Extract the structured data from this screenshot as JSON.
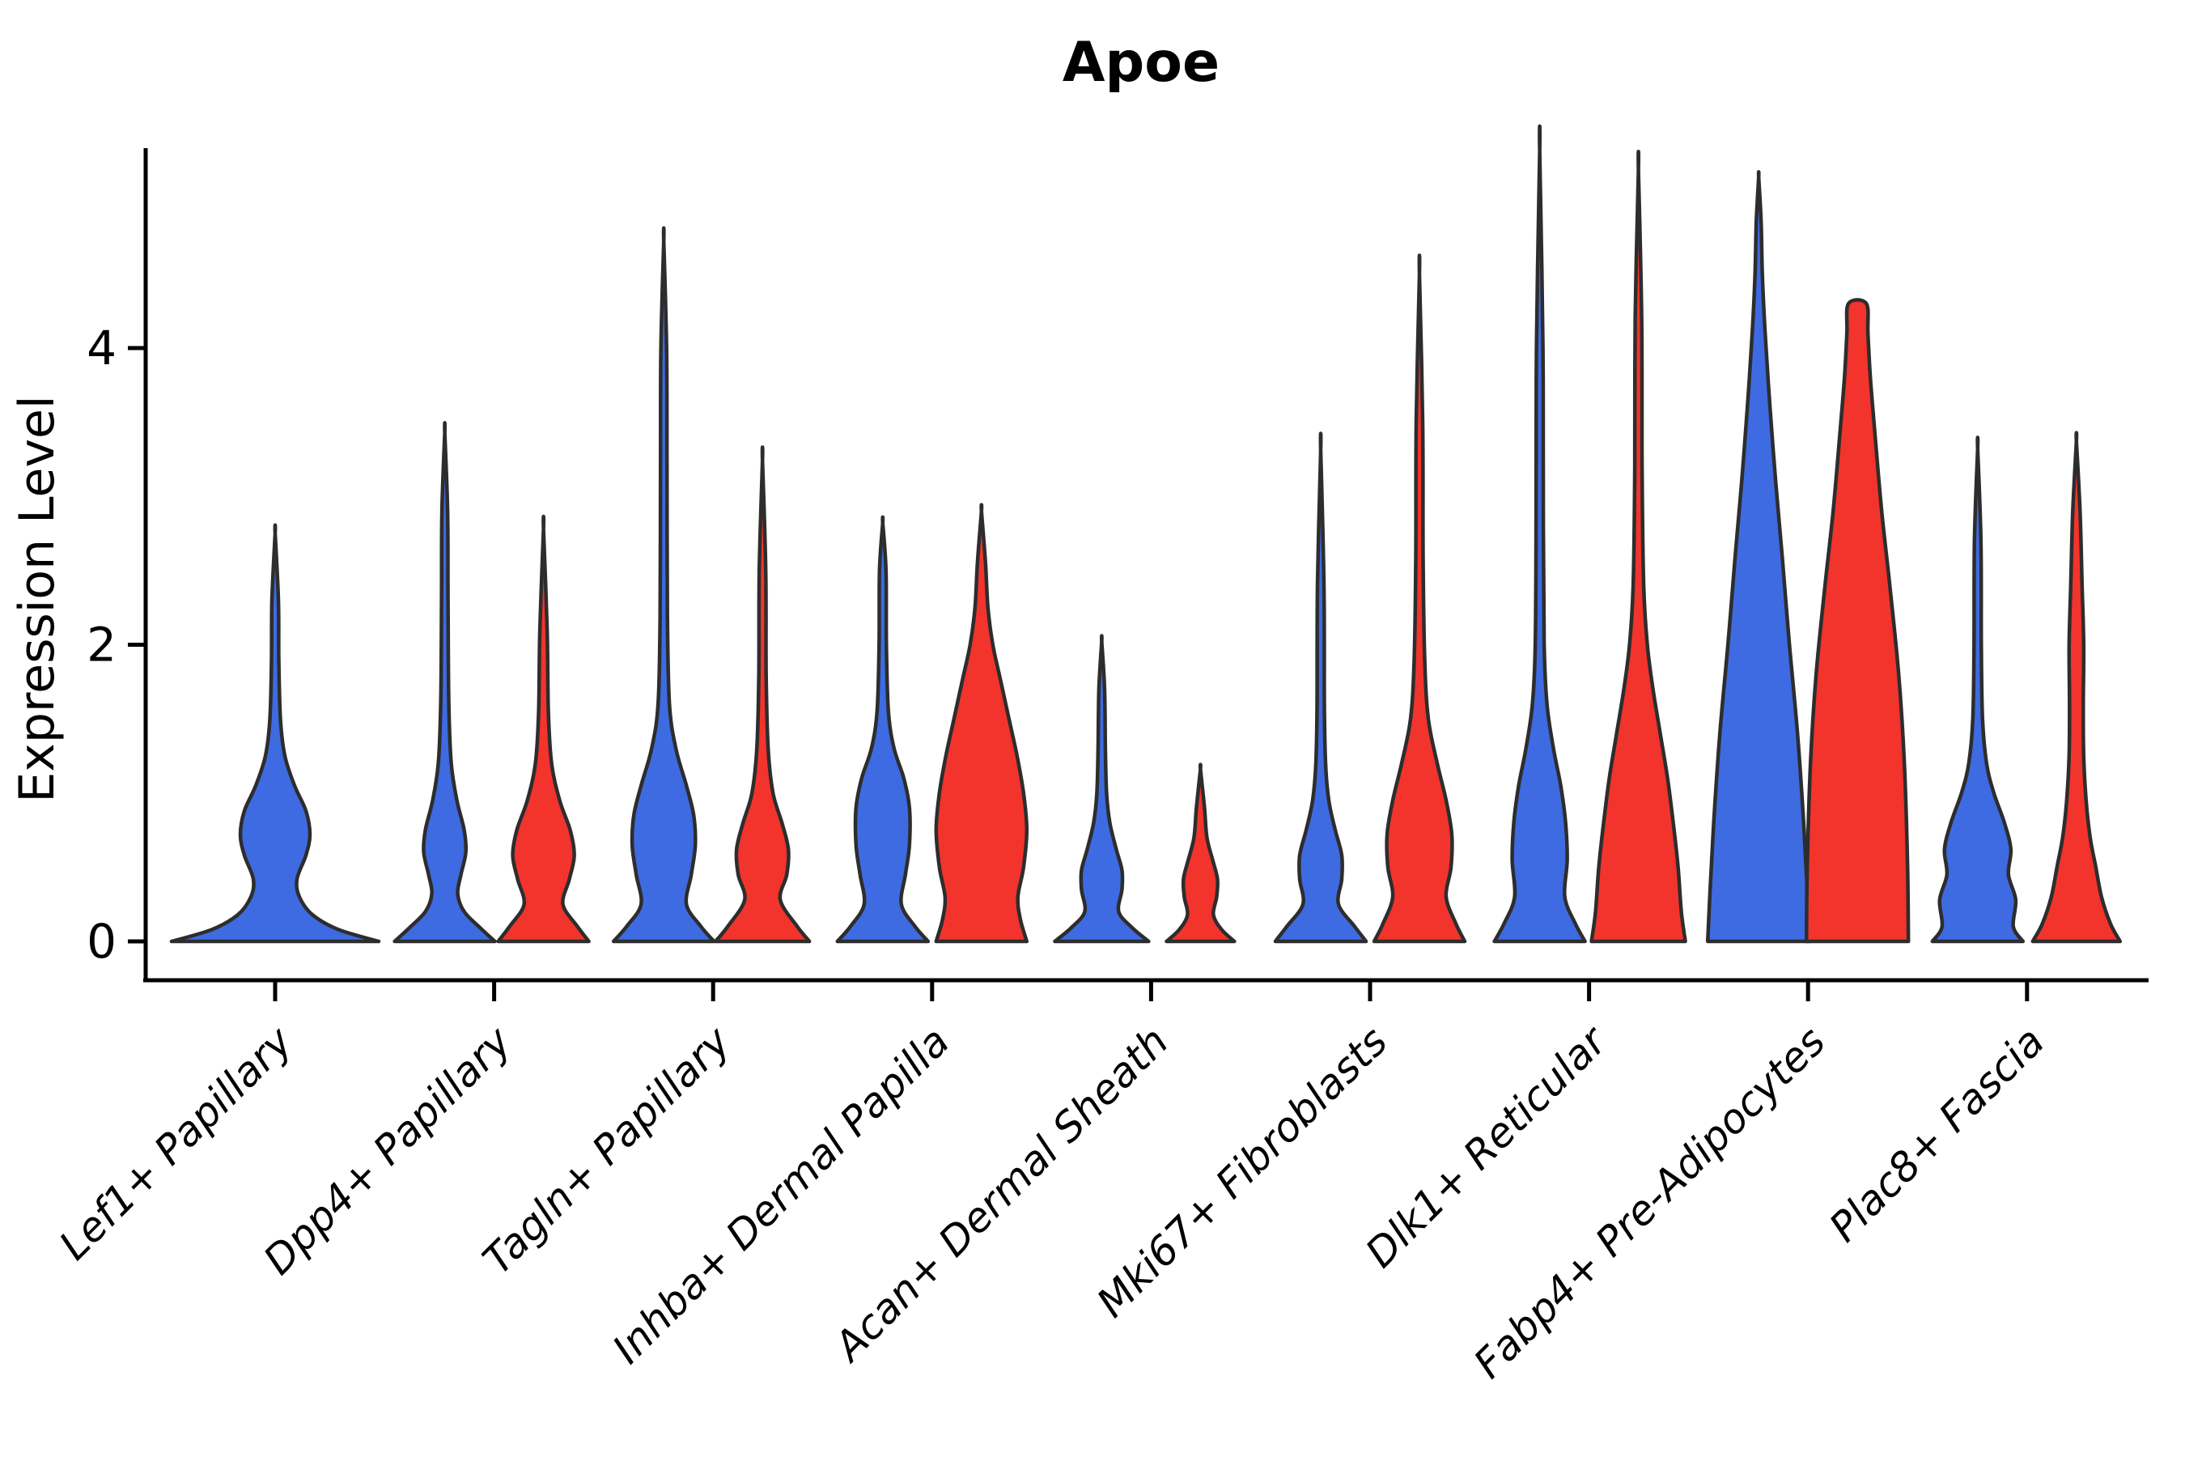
{
  "title": "Apoe",
  "y_axis": {
    "label": "Expression Level",
    "ticks": [
      "0",
      "2",
      "4"
    ],
    "tick_values": [
      0,
      2,
      4
    ]
  },
  "colors": {
    "blue": "#3E6BE1",
    "red": "#F2342C",
    "outline": "#2D2D2D",
    "axis": "#000000",
    "background": "#ffffff"
  },
  "chart_data": {
    "type": "violin",
    "title": "Apoe",
    "ylabel": "Expression Level",
    "xlabel": "",
    "ylim": [
      0,
      5.35
    ],
    "yticks": [
      0,
      2,
      4
    ],
    "grid": false,
    "legend": "none",
    "categories": [
      "Lef1+ Papillary",
      "Dpp4+ Papillary",
      "Tagln+ Papillary",
      "Inhba+ Dermal Papilla",
      "Acan+ Dermal Sheath",
      "Mki67+ Fibroblasts",
      "Dlk1+ Reticular",
      "Fabp4+ Pre-Adipocytes",
      "Plac8+ Fascia"
    ],
    "groups": [
      {
        "id": "blue",
        "color": "#3E6BE1"
      },
      {
        "id": "red",
        "color": "#F2342C"
      }
    ],
    "violins": [
      {
        "category_index": 0,
        "group": "blue",
        "span": "full",
        "max_value": 2.75,
        "profile": [
          [
            0,
            128
          ],
          [
            0.08,
            78
          ],
          [
            0.18,
            46
          ],
          [
            0.3,
            30
          ],
          [
            0.42,
            27
          ],
          [
            0.58,
            38
          ],
          [
            0.72,
            43
          ],
          [
            0.88,
            38
          ],
          [
            1.05,
            24
          ],
          [
            1.25,
            12
          ],
          [
            1.5,
            6.5
          ],
          [
            1.9,
            4.5
          ],
          [
            2.3,
            4
          ],
          [
            2.75,
            0
          ]
        ]
      },
      {
        "category_index": 1,
        "group": "blue",
        "span": "half",
        "max_value": 3.43,
        "profile": [
          [
            0,
            62
          ],
          [
            0.09,
            44
          ],
          [
            0.2,
            24
          ],
          [
            0.32,
            16
          ],
          [
            0.45,
            20
          ],
          [
            0.6,
            26
          ],
          [
            0.75,
            24
          ],
          [
            0.95,
            15
          ],
          [
            1.2,
            8
          ],
          [
            1.6,
            5
          ],
          [
            2.3,
            4
          ],
          [
            2.9,
            3.5
          ],
          [
            3.43,
            0
          ]
        ]
      },
      {
        "category_index": 1,
        "group": "red",
        "span": "half",
        "max_value": 2.78,
        "profile": [
          [
            0,
            56
          ],
          [
            0.1,
            42
          ],
          [
            0.25,
            24
          ],
          [
            0.42,
            32
          ],
          [
            0.58,
            38
          ],
          [
            0.75,
            33
          ],
          [
            0.95,
            20
          ],
          [
            1.2,
            10
          ],
          [
            1.55,
            6
          ],
          [
            2.1,
            4.5
          ],
          [
            2.78,
            0
          ]
        ]
      },
      {
        "category_index": 2,
        "group": "blue",
        "span": "half",
        "max_value": 4.72,
        "profile": [
          [
            0,
            62
          ],
          [
            0.1,
            46
          ],
          [
            0.25,
            28
          ],
          [
            0.45,
            34
          ],
          [
            0.65,
            39
          ],
          [
            0.85,
            37
          ],
          [
            1.05,
            28
          ],
          [
            1.3,
            15
          ],
          [
            1.6,
            7
          ],
          [
            2.2,
            4.5
          ],
          [
            3.2,
            4
          ],
          [
            4.0,
            3.5
          ],
          [
            4.72,
            0
          ]
        ]
      },
      {
        "category_index": 2,
        "group": "red",
        "span": "half",
        "max_value": 3.24,
        "profile": [
          [
            0,
            58
          ],
          [
            0.1,
            43
          ],
          [
            0.28,
            22
          ],
          [
            0.45,
            30
          ],
          [
            0.62,
            32
          ],
          [
            0.8,
            24
          ],
          [
            1.0,
            13
          ],
          [
            1.3,
            7
          ],
          [
            1.8,
            4.5
          ],
          [
            2.5,
            4
          ],
          [
            3.24,
            0
          ]
        ]
      },
      {
        "category_index": 3,
        "group": "blue",
        "span": "half",
        "max_value": 2.82,
        "profile": [
          [
            0,
            56
          ],
          [
            0.1,
            40
          ],
          [
            0.25,
            23
          ],
          [
            0.45,
            28
          ],
          [
            0.65,
            33
          ],
          [
            0.9,
            33
          ],
          [
            1.1,
            26
          ],
          [
            1.3,
            14
          ],
          [
            1.55,
            7
          ],
          [
            2.0,
            4.5
          ],
          [
            2.5,
            4
          ],
          [
            2.82,
            0
          ]
        ]
      },
      {
        "category_index": 3,
        "group": "red",
        "span": "half",
        "max_value": 2.9,
        "profile": [
          [
            0,
            56
          ],
          [
            0.15,
            48
          ],
          [
            0.3,
            45
          ],
          [
            0.5,
            52
          ],
          [
            0.75,
            56
          ],
          [
            1.0,
            52
          ],
          [
            1.25,
            44
          ],
          [
            1.5,
            34
          ],
          [
            1.75,
            24
          ],
          [
            2.0,
            14
          ],
          [
            2.25,
            8
          ],
          [
            2.55,
            5
          ],
          [
            2.9,
            0
          ]
        ]
      },
      {
        "category_index": 4,
        "group": "blue",
        "span": "half",
        "max_value": 2.02,
        "profile": [
          [
            0,
            58
          ],
          [
            0.09,
            38
          ],
          [
            0.2,
            21
          ],
          [
            0.35,
            25
          ],
          [
            0.48,
            25
          ],
          [
            0.62,
            18
          ],
          [
            0.8,
            10
          ],
          [
            1.0,
            6
          ],
          [
            1.3,
            4.5
          ],
          [
            1.7,
            3.5
          ],
          [
            2.02,
            0
          ]
        ]
      },
      {
        "category_index": 4,
        "group": "red",
        "span": "half",
        "max_value": 1.16,
        "profile": [
          [
            0,
            42
          ],
          [
            0.08,
            26
          ],
          [
            0.18,
            16
          ],
          [
            0.3,
            20
          ],
          [
            0.42,
            21
          ],
          [
            0.55,
            15
          ],
          [
            0.7,
            8
          ],
          [
            0.9,
            5
          ],
          [
            1.16,
            0
          ]
        ]
      },
      {
        "category_index": 5,
        "group": "blue",
        "span": "half",
        "max_value": 3.31,
        "profile": [
          [
            0,
            56
          ],
          [
            0.1,
            42
          ],
          [
            0.25,
            22
          ],
          [
            0.42,
            26
          ],
          [
            0.58,
            26
          ],
          [
            0.75,
            18
          ],
          [
            0.95,
            10
          ],
          [
            1.2,
            6
          ],
          [
            1.6,
            4.5
          ],
          [
            2.4,
            4
          ],
          [
            3.31,
            0
          ]
        ]
      },
      {
        "category_index": 5,
        "group": "red",
        "span": "half",
        "max_value": 4.5,
        "profile": [
          [
            0,
            56
          ],
          [
            0.12,
            45
          ],
          [
            0.3,
            33
          ],
          [
            0.5,
            39
          ],
          [
            0.72,
            40
          ],
          [
            0.95,
            33
          ],
          [
            1.2,
            22
          ],
          [
            1.5,
            11
          ],
          [
            1.9,
            6.5
          ],
          [
            2.6,
            4.5
          ],
          [
            3.5,
            4
          ],
          [
            4.5,
            0
          ]
        ]
      },
      {
        "category_index": 6,
        "group": "blue",
        "span": "half",
        "max_value": 5.33,
        "profile": [
          [
            0,
            56
          ],
          [
            0.12,
            44
          ],
          [
            0.3,
            31
          ],
          [
            0.55,
            34
          ],
          [
            0.8,
            32
          ],
          [
            1.05,
            26
          ],
          [
            1.3,
            17
          ],
          [
            1.6,
            9
          ],
          [
            2.0,
            5.5
          ],
          [
            2.8,
            4.5
          ],
          [
            4.0,
            4
          ],
          [
            5.33,
            0
          ]
        ]
      },
      {
        "category_index": 6,
        "group": "red",
        "span": "half",
        "max_value": 5.2,
        "profile": [
          [
            0,
            58
          ],
          [
            0.2,
            53
          ],
          [
            0.5,
            49
          ],
          [
            0.8,
            43
          ],
          [
            1.1,
            36
          ],
          [
            1.4,
            27
          ],
          [
            1.7,
            18
          ],
          [
            2.0,
            11
          ],
          [
            2.4,
            6.5
          ],
          [
            3.2,
            4.5
          ],
          [
            4.2,
            4
          ],
          [
            5.2,
            0
          ]
        ]
      },
      {
        "category_index": 7,
        "group": "blue",
        "span": "half",
        "max_value": 5.15,
        "profile": [
          [
            0,
            63
          ],
          [
            0.35,
            60
          ],
          [
            0.85,
            55
          ],
          [
            1.4,
            48
          ],
          [
            2.0,
            38
          ],
          [
            2.6,
            29
          ],
          [
            3.1,
            21
          ],
          [
            3.6,
            14
          ],
          [
            4.1,
            8
          ],
          [
            4.5,
            4.5
          ],
          [
            4.85,
            3
          ],
          [
            5.15,
            0
          ]
        ]
      },
      {
        "category_index": 7,
        "group": "red",
        "span": "half",
        "max_value": 4.3,
        "flat_top": true,
        "profile": [
          [
            0,
            63
          ],
          [
            0.5,
            62
          ],
          [
            1.2,
            58
          ],
          [
            1.8,
            51
          ],
          [
            2.4,
            40
          ],
          [
            2.9,
            30
          ],
          [
            3.4,
            22
          ],
          [
            3.8,
            16
          ],
          [
            4.1,
            13
          ],
          [
            4.3,
            11
          ]
        ]
      },
      {
        "category_index": 8,
        "group": "blue",
        "span": "half",
        "max_value": 3.32,
        "profile": [
          [
            0,
            56
          ],
          [
            0.1,
            44
          ],
          [
            0.28,
            47
          ],
          [
            0.45,
            38
          ],
          [
            0.62,
            41
          ],
          [
            0.8,
            33
          ],
          [
            1.0,
            20
          ],
          [
            1.2,
            11
          ],
          [
            1.5,
            6
          ],
          [
            2.0,
            4.5
          ],
          [
            2.7,
            4
          ],
          [
            3.32,
            0
          ]
        ]
      },
      {
        "category_index": 8,
        "group": "red",
        "span": "half",
        "max_value": 3.37,
        "profile": [
          [
            0,
            54
          ],
          [
            0.12,
            42
          ],
          [
            0.3,
            31
          ],
          [
            0.5,
            24
          ],
          [
            0.7,
            17
          ],
          [
            0.95,
            12
          ],
          [
            1.25,
            9
          ],
          [
            1.6,
            8.5
          ],
          [
            2.0,
            9
          ],
          [
            2.4,
            7
          ],
          [
            2.9,
            4.5
          ],
          [
            3.37,
            0
          ]
        ]
      }
    ]
  }
}
